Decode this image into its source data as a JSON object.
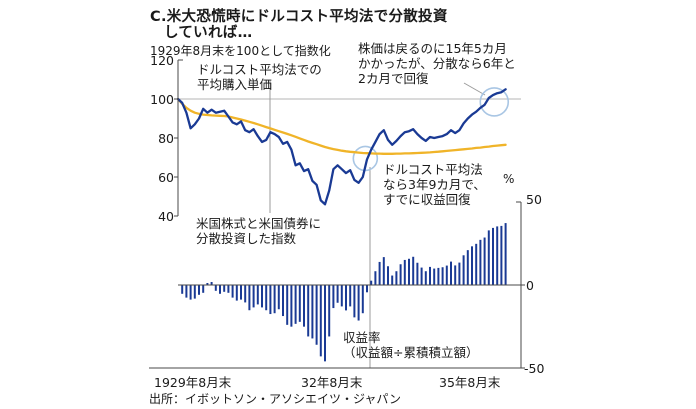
{
  "title": {
    "line1": "C.米大恐慌時にドルコスト平均法で分散投資",
    "line2": "していれば…"
  },
  "subtitle": "1929年8月末を100として指数化",
  "annotations": {
    "avg_price": {
      "line1": "ドルコスト平均法での",
      "line2": "平均購入単価"
    },
    "recovery": {
      "line1": "株価は戻るのに15年5カ月",
      "line2": "かかったが、分散なら6年と",
      "line3": "2カ月で回復"
    },
    "dca_recovery": {
      "line1": "ドルコスト平均法",
      "line2": "なら3年9カ月で、",
      "line3": "すでに収益回復"
    },
    "index_label": {
      "line1": "米国株式と米国債券に",
      "line2": "分散投資した指数"
    },
    "return_label": {
      "line1": "収益率",
      "line2": "（収益額÷累積積立額）"
    }
  },
  "axes": {
    "left_ticks": [
      "120",
      "100",
      "80",
      "60",
      "40"
    ],
    "right_ticks": [
      "50",
      "0",
      "-50"
    ],
    "right_unit": "%",
    "x_ticks": [
      "1929年8月末",
      "32年8月末",
      "35年8月末"
    ]
  },
  "source": "出所：イボットソン・アソシエイツ・ジャパン",
  "colors": {
    "index_line": "#1a3a94",
    "avg_line": "#f0b429",
    "bars": "#1a3a94",
    "grid": "#b5b5b5",
    "axis": "#4a4a4a",
    "zero_line": "#4a4a4a",
    "pointer": "#9b9b9b",
    "circle": "#a9c6e4"
  },
  "chart_data": {
    "type": "line+bar",
    "title": "C.米大恐慌時にドルコスト平均法で分散投資していれば…",
    "x_axis": {
      "unit": "month",
      "start": "1929年8月末",
      "tick_labels": [
        "1929年8月末",
        "32年8月末",
        "35年8月末"
      ],
      "tick_month_offsets": [
        0,
        36,
        72
      ]
    },
    "left_axis": {
      "label": "1929年8月末を100として指数化",
      "range": [
        40,
        120
      ],
      "ticks": [
        120,
        100,
        80,
        60,
        40
      ],
      "gridline_at": 100
    },
    "right_axis": {
      "label": "%",
      "range": [
        -50,
        50
      ],
      "ticks": [
        50,
        0,
        -50
      ]
    },
    "series": [
      {
        "name": "米国株式と米国債券に分散投資した指数",
        "type": "line",
        "axis": "left",
        "color": "#1a3a94",
        "values": [
          100,
          98,
          93,
          85,
          87,
          90,
          95,
          93,
          94.5,
          93,
          93.5,
          94,
          91,
          88,
          87,
          88.5,
          84,
          83,
          84.5,
          81,
          78,
          79,
          83,
          82,
          80.5,
          77,
          78,
          74,
          66,
          67,
          63,
          64,
          58,
          56,
          48,
          46,
          53,
          64,
          66,
          64,
          62,
          63.5,
          58.5,
          57,
          60,
          69,
          74,
          78,
          82,
          84,
          79,
          76.5,
          78.5,
          81,
          83,
          83.5,
          84.5,
          82,
          80,
          78.5,
          80.5,
          80,
          80.5,
          81,
          82,
          84,
          82.5,
          84,
          87.5,
          90,
          92,
          93.5,
          95.5,
          97,
          100.5,
          102,
          103,
          103.5,
          105
        ]
      },
      {
        "name": "ドルコスト平均法での平均購入単価",
        "type": "line",
        "axis": "left",
        "color": "#f0b429",
        "values": [
          100,
          97.5,
          95.5,
          94,
          93,
          92.4,
          92,
          91.8,
          91.6,
          91.5,
          91.4,
          91.3,
          91,
          90.5,
          90,
          89.5,
          88.9,
          88.3,
          87.7,
          87,
          86.3,
          85.6,
          84.9,
          84.2,
          83.5,
          82.8,
          82.1,
          81.4,
          80.6,
          79.8,
          79,
          78.2,
          77.5,
          76.8,
          76.1,
          75.4,
          74.8,
          74.3,
          73.9,
          73.5,
          73.2,
          72.9,
          72.7,
          72.5,
          72.3,
          72.2,
          72.1,
          72,
          72,
          71.9,
          71.9,
          71.9,
          72,
          72,
          72.1,
          72.1,
          72.2,
          72.3,
          72.4,
          72.5,
          72.6,
          72.8,
          73,
          73.2,
          73.4,
          73.6,
          73.8,
          74,
          74.2,
          74.4,
          74.6,
          74.9,
          75.1,
          75.4,
          75.6,
          75.9,
          76.1,
          76.3,
          76.5
        ]
      },
      {
        "name": "収益率（収益額÷累積積立額）",
        "type": "bar",
        "axis": "right",
        "color": "#1a3a94",
        "values": [
          null,
          -5.3,
          -7.6,
          -8.8,
          -8.2,
          -5.9,
          -4.7,
          1.2,
          1.8,
          -3.5,
          -5.3,
          -4.1,
          -4.7,
          -7.6,
          -9.4,
          -8.8,
          -10.5,
          -15.2,
          -13.5,
          -11.7,
          -13.5,
          -15.2,
          -17.5,
          -17,
          -14.6,
          -18.7,
          -24,
          -25.1,
          -23.4,
          -22.2,
          -25.1,
          -31,
          -32.2,
          -36,
          -43,
          -46,
          -31,
          -13.9,
          -10.7,
          -12.9,
          -15.3,
          -12.9,
          -19.5,
          -21.4,
          -17,
          -4.4,
          2.6,
          8.3,
          13.9,
          16.8,
          11.3,
          5.7,
          8.3,
          12.5,
          15.1,
          15.8,
          17,
          13.4,
          10.5,
          8.3,
          10.9,
          9.9,
          10.3,
          10.7,
          11.7,
          14.1,
          11.8,
          13.5,
          17.9,
          21,
          23.3,
          24.8,
          27.2,
          28.6,
          32.9,
          34.4,
          35.3,
          35.6,
          37.3
        ]
      }
    ],
    "highlight_circles": [
      {
        "month": 44.6,
        "value": 69.5,
        "radius": 12,
        "note": "3年9カ月で収益回復"
      },
      {
        "month": 75.3,
        "value": 98.5,
        "radius": 14,
        "note": "6年と2カ月で回復"
      }
    ]
  }
}
